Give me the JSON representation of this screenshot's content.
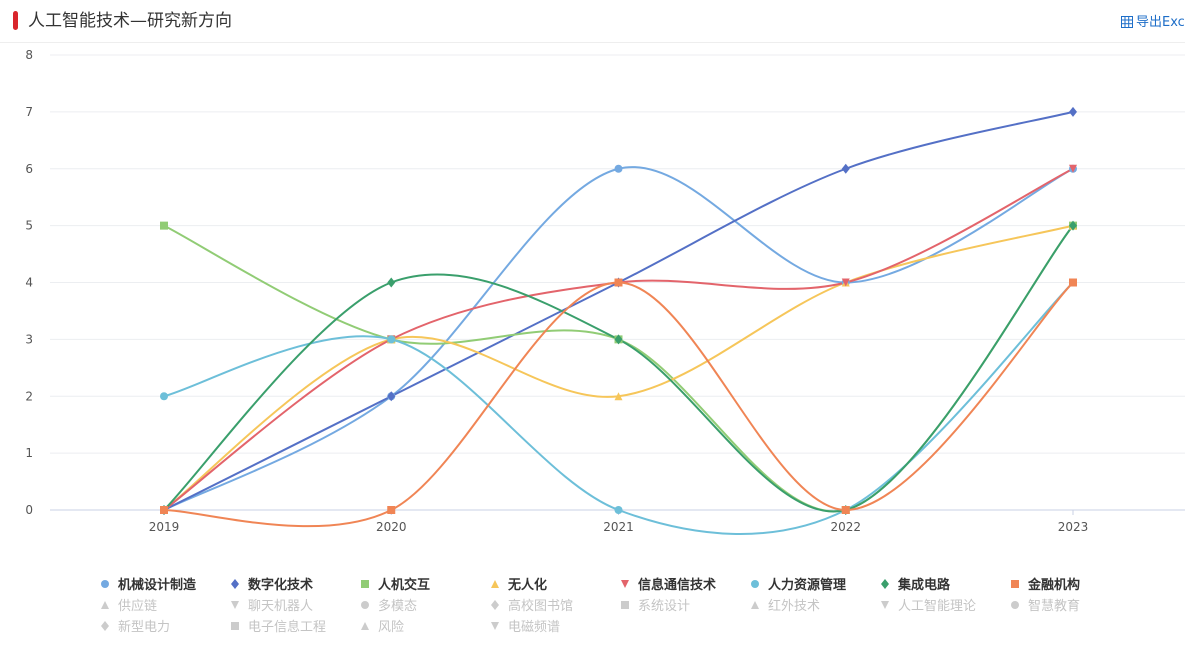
{
  "page": {
    "title": "人工智能技术—研究新方向",
    "export_label": "导出Excel"
  },
  "chart_data": {
    "type": "line",
    "smooth": true,
    "title": "人工智能技术—研究新方向",
    "categories": [
      "2019",
      "2020",
      "2021",
      "2022",
      "2023"
    ],
    "ylim": [
      0,
      8
    ],
    "yticks": [
      0,
      1,
      2,
      3,
      4,
      5,
      6,
      7,
      8
    ],
    "grid": true,
    "legend_position": "bottom",
    "series": [
      {
        "name": "机械设计制造",
        "color": "#74a9e1",
        "symbol": "circle",
        "values": [
          0,
          2,
          6,
          4,
          6
        ]
      },
      {
        "name": "数字化技术",
        "color": "#5470c6",
        "symbol": "diamond",
        "values": [
          0,
          2,
          4,
          6,
          7
        ]
      },
      {
        "name": "人机交互",
        "color": "#91cc75",
        "symbol": "square",
        "values": [
          5,
          3,
          3,
          0,
          5
        ]
      },
      {
        "name": "无人化",
        "color": "#f6c65a",
        "symbol": "triangle",
        "values": [
          0,
          3,
          2,
          4,
          5
        ]
      },
      {
        "name": "信息通信技术",
        "color": "#e3646b",
        "symbol": "triangle-down",
        "values": [
          0,
          3,
          4,
          4,
          6
        ]
      },
      {
        "name": "人力资源管理",
        "color": "#6dbfd9",
        "symbol": "circle",
        "values": [
          2,
          3,
          0,
          0,
          4
        ]
      },
      {
        "name": "集成电路",
        "color": "#3a9f6c",
        "symbol": "diamond",
        "values": [
          0,
          4,
          3,
          0,
          5
        ]
      },
      {
        "name": "金融机构",
        "color": "#f08555",
        "symbol": "square",
        "values": [
          0,
          0,
          4,
          0,
          4
        ]
      }
    ],
    "inactive_series": [
      {
        "name": "供应链",
        "symbol": "triangle"
      },
      {
        "name": "聊天机器人",
        "symbol": "triangle-down"
      },
      {
        "name": "多模态",
        "symbol": "circle"
      },
      {
        "name": "高校图书馆",
        "symbol": "diamond"
      },
      {
        "name": "系统设计",
        "symbol": "square"
      },
      {
        "name": "红外技术",
        "symbol": "triangle"
      },
      {
        "name": "人工智能理论",
        "symbol": "triangle-down"
      },
      {
        "name": "智慧教育",
        "symbol": "circle"
      },
      {
        "name": "新型电力",
        "symbol": "diamond"
      },
      {
        "name": "电子信息工程",
        "symbol": "square"
      },
      {
        "name": "风险",
        "symbol": "triangle"
      },
      {
        "name": "电磁频谱",
        "symbol": "triangle-down"
      }
    ],
    "inactive_color": "#cccccc"
  }
}
